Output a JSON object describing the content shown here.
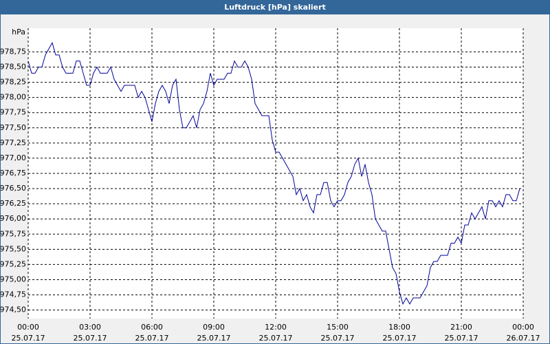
{
  "chart_data": {
    "type": "line",
    "title": "Luftdruck [hPa] skaliert",
    "y_label": "hPa",
    "xlim": [
      0,
      1440
    ],
    "ylim": [
      974.36,
      979.14
    ],
    "xticks": [
      {
        "value": 0,
        "label": "00:00",
        "date": "25.07.17"
      },
      {
        "value": 180,
        "label": "03:00",
        "date": "25.07.17"
      },
      {
        "value": 360,
        "label": "06:00",
        "date": "25.07.17"
      },
      {
        "value": 540,
        "label": "09:00",
        "date": "25.07.17"
      },
      {
        "value": 720,
        "label": "12:00",
        "date": "25.07.17"
      },
      {
        "value": 900,
        "label": "15:00",
        "date": "25.07.17"
      },
      {
        "value": 1080,
        "label": "18:00",
        "date": "25.07.17"
      },
      {
        "value": 1260,
        "label": "21:00",
        "date": "25.07.17"
      },
      {
        "value": 1440,
        "label": "00:00",
        "date": "26.07.17"
      }
    ],
    "yticks": [
      {
        "value": 974.5,
        "label": "974,50"
      },
      {
        "value": 974.75,
        "label": "974,75"
      },
      {
        "value": 975,
        "label": "975,00"
      },
      {
        "value": 975.25,
        "label": "975,25"
      },
      {
        "value": 975.5,
        "label": "975,50"
      },
      {
        "value": 975.75,
        "label": "975,75"
      },
      {
        "value": 976,
        "label": "976,00"
      },
      {
        "value": 976.25,
        "label": "976,25"
      },
      {
        "value": 976.5,
        "label": "976,50"
      },
      {
        "value": 976.75,
        "label": "976,75"
      },
      {
        "value": 977,
        "label": "977,00"
      },
      {
        "value": 977.25,
        "label": "977,25"
      },
      {
        "value": 977.5,
        "label": "977,50"
      },
      {
        "value": 977.75,
        "label": "977,75"
      },
      {
        "value": 978,
        "label": "978,00"
      },
      {
        "value": 978.25,
        "label": "978,25"
      },
      {
        "value": 978.5,
        "label": "978,50"
      },
      {
        "value": 978.75,
        "label": "978,75"
      }
    ],
    "grid": true,
    "x": [
      0,
      10,
      20,
      30,
      40,
      50,
      60,
      70,
      80,
      90,
      100,
      110,
      120,
      130,
      140,
      150,
      160,
      170,
      180,
      190,
      200,
      210,
      220,
      230,
      240,
      250,
      260,
      270,
      280,
      290,
      300,
      310,
      320,
      330,
      340,
      350,
      360,
      370,
      380,
      390,
      400,
      410,
      420,
      430,
      440,
      450,
      460,
      470,
      480,
      490,
      500,
      510,
      520,
      530,
      540,
      550,
      560,
      570,
      580,
      590,
      600,
      610,
      620,
      630,
      640,
      650,
      660,
      670,
      680,
      690,
      700,
      710,
      720,
      730,
      740,
      750,
      760,
      770,
      780,
      790,
      800,
      810,
      820,
      830,
      840,
      850,
      860,
      870,
      880,
      890,
      900,
      910,
      920,
      930,
      940,
      950,
      960,
      970,
      980,
      990,
      1000,
      1010,
      1020,
      1030,
      1040,
      1050,
      1060,
      1070,
      1080,
      1090,
      1100,
      1110,
      1120,
      1130,
      1140,
      1150,
      1160,
      1170,
      1180,
      1190,
      1200,
      1210,
      1220,
      1230,
      1240,
      1250,
      1260,
      1270,
      1280,
      1290,
      1300,
      1310,
      1320,
      1330,
      1340,
      1350,
      1360,
      1370,
      1380,
      1390,
      1400,
      1410,
      1420,
      1430
    ],
    "series": [
      {
        "color": "#000099",
        "values": [
          978.6,
          978.4,
          978.4,
          978.5,
          978.5,
          978.7,
          978.8,
          978.9,
          978.7,
          978.7,
          978.5,
          978.4,
          978.4,
          978.4,
          978.6,
          978.6,
          978.4,
          978.2,
          978.2,
          978.4,
          978.5,
          978.4,
          978.4,
          978.4,
          978.5,
          978.3,
          978.2,
          978.1,
          978.2,
          978.2,
          978.2,
          978.2,
          978.0,
          978.1,
          978.0,
          977.8,
          977.6,
          977.9,
          978.1,
          978.2,
          978.1,
          977.9,
          978.2,
          978.3,
          977.8,
          977.5,
          977.5,
          977.6,
          977.7,
          977.5,
          977.8,
          977.9,
          978.1,
          978.4,
          978.2,
          978.3,
          978.3,
          978.3,
          978.4,
          978.4,
          978.6,
          978.5,
          978.5,
          978.6,
          978.5,
          978.3,
          977.9,
          977.8,
          977.7,
          977.7,
          977.7,
          977.3,
          977.1,
          977.1,
          977.0,
          976.9,
          976.8,
          976.7,
          976.4,
          976.5,
          976.3,
          976.4,
          976.2,
          976.1,
          976.4,
          976.4,
          976.6,
          976.6,
          976.3,
          976.2,
          976.3,
          976.3,
          976.4,
          976.6,
          976.7,
          976.9,
          977.0,
          976.7,
          976.9,
          976.6,
          976.4,
          976.0,
          975.9,
          975.8,
          975.8,
          975.5,
          975.2,
          975.1,
          974.8,
          974.6,
          974.7,
          974.6,
          974.7,
          974.7,
          974.7,
          974.8,
          974.9,
          975.2,
          975.3,
          975.3,
          975.4,
          975.4,
          975.4,
          975.6,
          975.6,
          975.7,
          975.6,
          975.9,
          975.9,
          976.1,
          976.0,
          976.1,
          976.2,
          976.0,
          976.3,
          976.3,
          976.2,
          976.3,
          976.2,
          976.4,
          976.4,
          976.3,
          976.3,
          976.5
        ]
      }
    ]
  }
}
